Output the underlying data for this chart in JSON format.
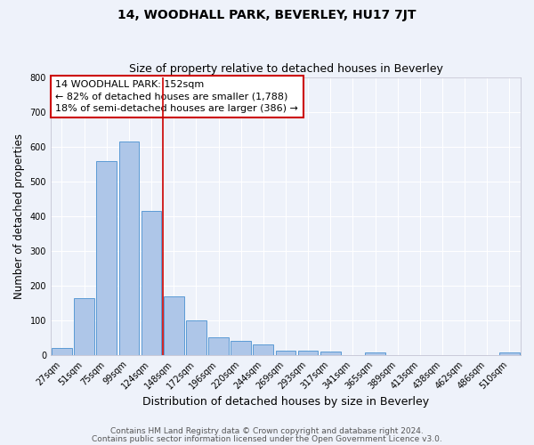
{
  "title": "14, WOODHALL PARK, BEVERLEY, HU17 7JT",
  "subtitle": "Size of property relative to detached houses in Beverley",
  "xlabel": "Distribution of detached houses by size in Beverley",
  "ylabel": "Number of detached properties",
  "categories": [
    "27sqm",
    "51sqm",
    "75sqm",
    "99sqm",
    "124sqm",
    "148sqm",
    "172sqm",
    "196sqm",
    "220sqm",
    "244sqm",
    "269sqm",
    "293sqm",
    "317sqm",
    "341sqm",
    "365sqm",
    "389sqm",
    "413sqm",
    "438sqm",
    "462sqm",
    "486sqm",
    "510sqm"
  ],
  "values": [
    20,
    165,
    560,
    615,
    415,
    170,
    100,
    52,
    42,
    32,
    13,
    12,
    10,
    0,
    8,
    0,
    0,
    0,
    0,
    0,
    7
  ],
  "bar_color": "#aec6e8",
  "bar_edge_color": "#5b9bd5",
  "vline_x": 4.5,
  "vline_color": "#cc0000",
  "annotation_line1": "14 WOODHALL PARK: 152sqm",
  "annotation_line2": "← 82% of detached houses are smaller (1,788)",
  "annotation_line3": "18% of semi-detached houses are larger (386) →",
  "annotation_color": "#cc0000",
  "ylim": [
    0,
    800
  ],
  "yticks": [
    0,
    100,
    200,
    300,
    400,
    500,
    600,
    700,
    800
  ],
  "background_color": "#eef2fa",
  "grid_color": "#ffffff",
  "footer_line1": "Contains HM Land Registry data © Crown copyright and database right 2024.",
  "footer_line2": "Contains public sector information licensed under the Open Government Licence v3.0.",
  "title_fontsize": 10,
  "subtitle_fontsize": 9,
  "xlabel_fontsize": 9,
  "ylabel_fontsize": 8.5,
  "tick_fontsize": 7,
  "annotation_fontsize": 8,
  "footer_fontsize": 6.5
}
